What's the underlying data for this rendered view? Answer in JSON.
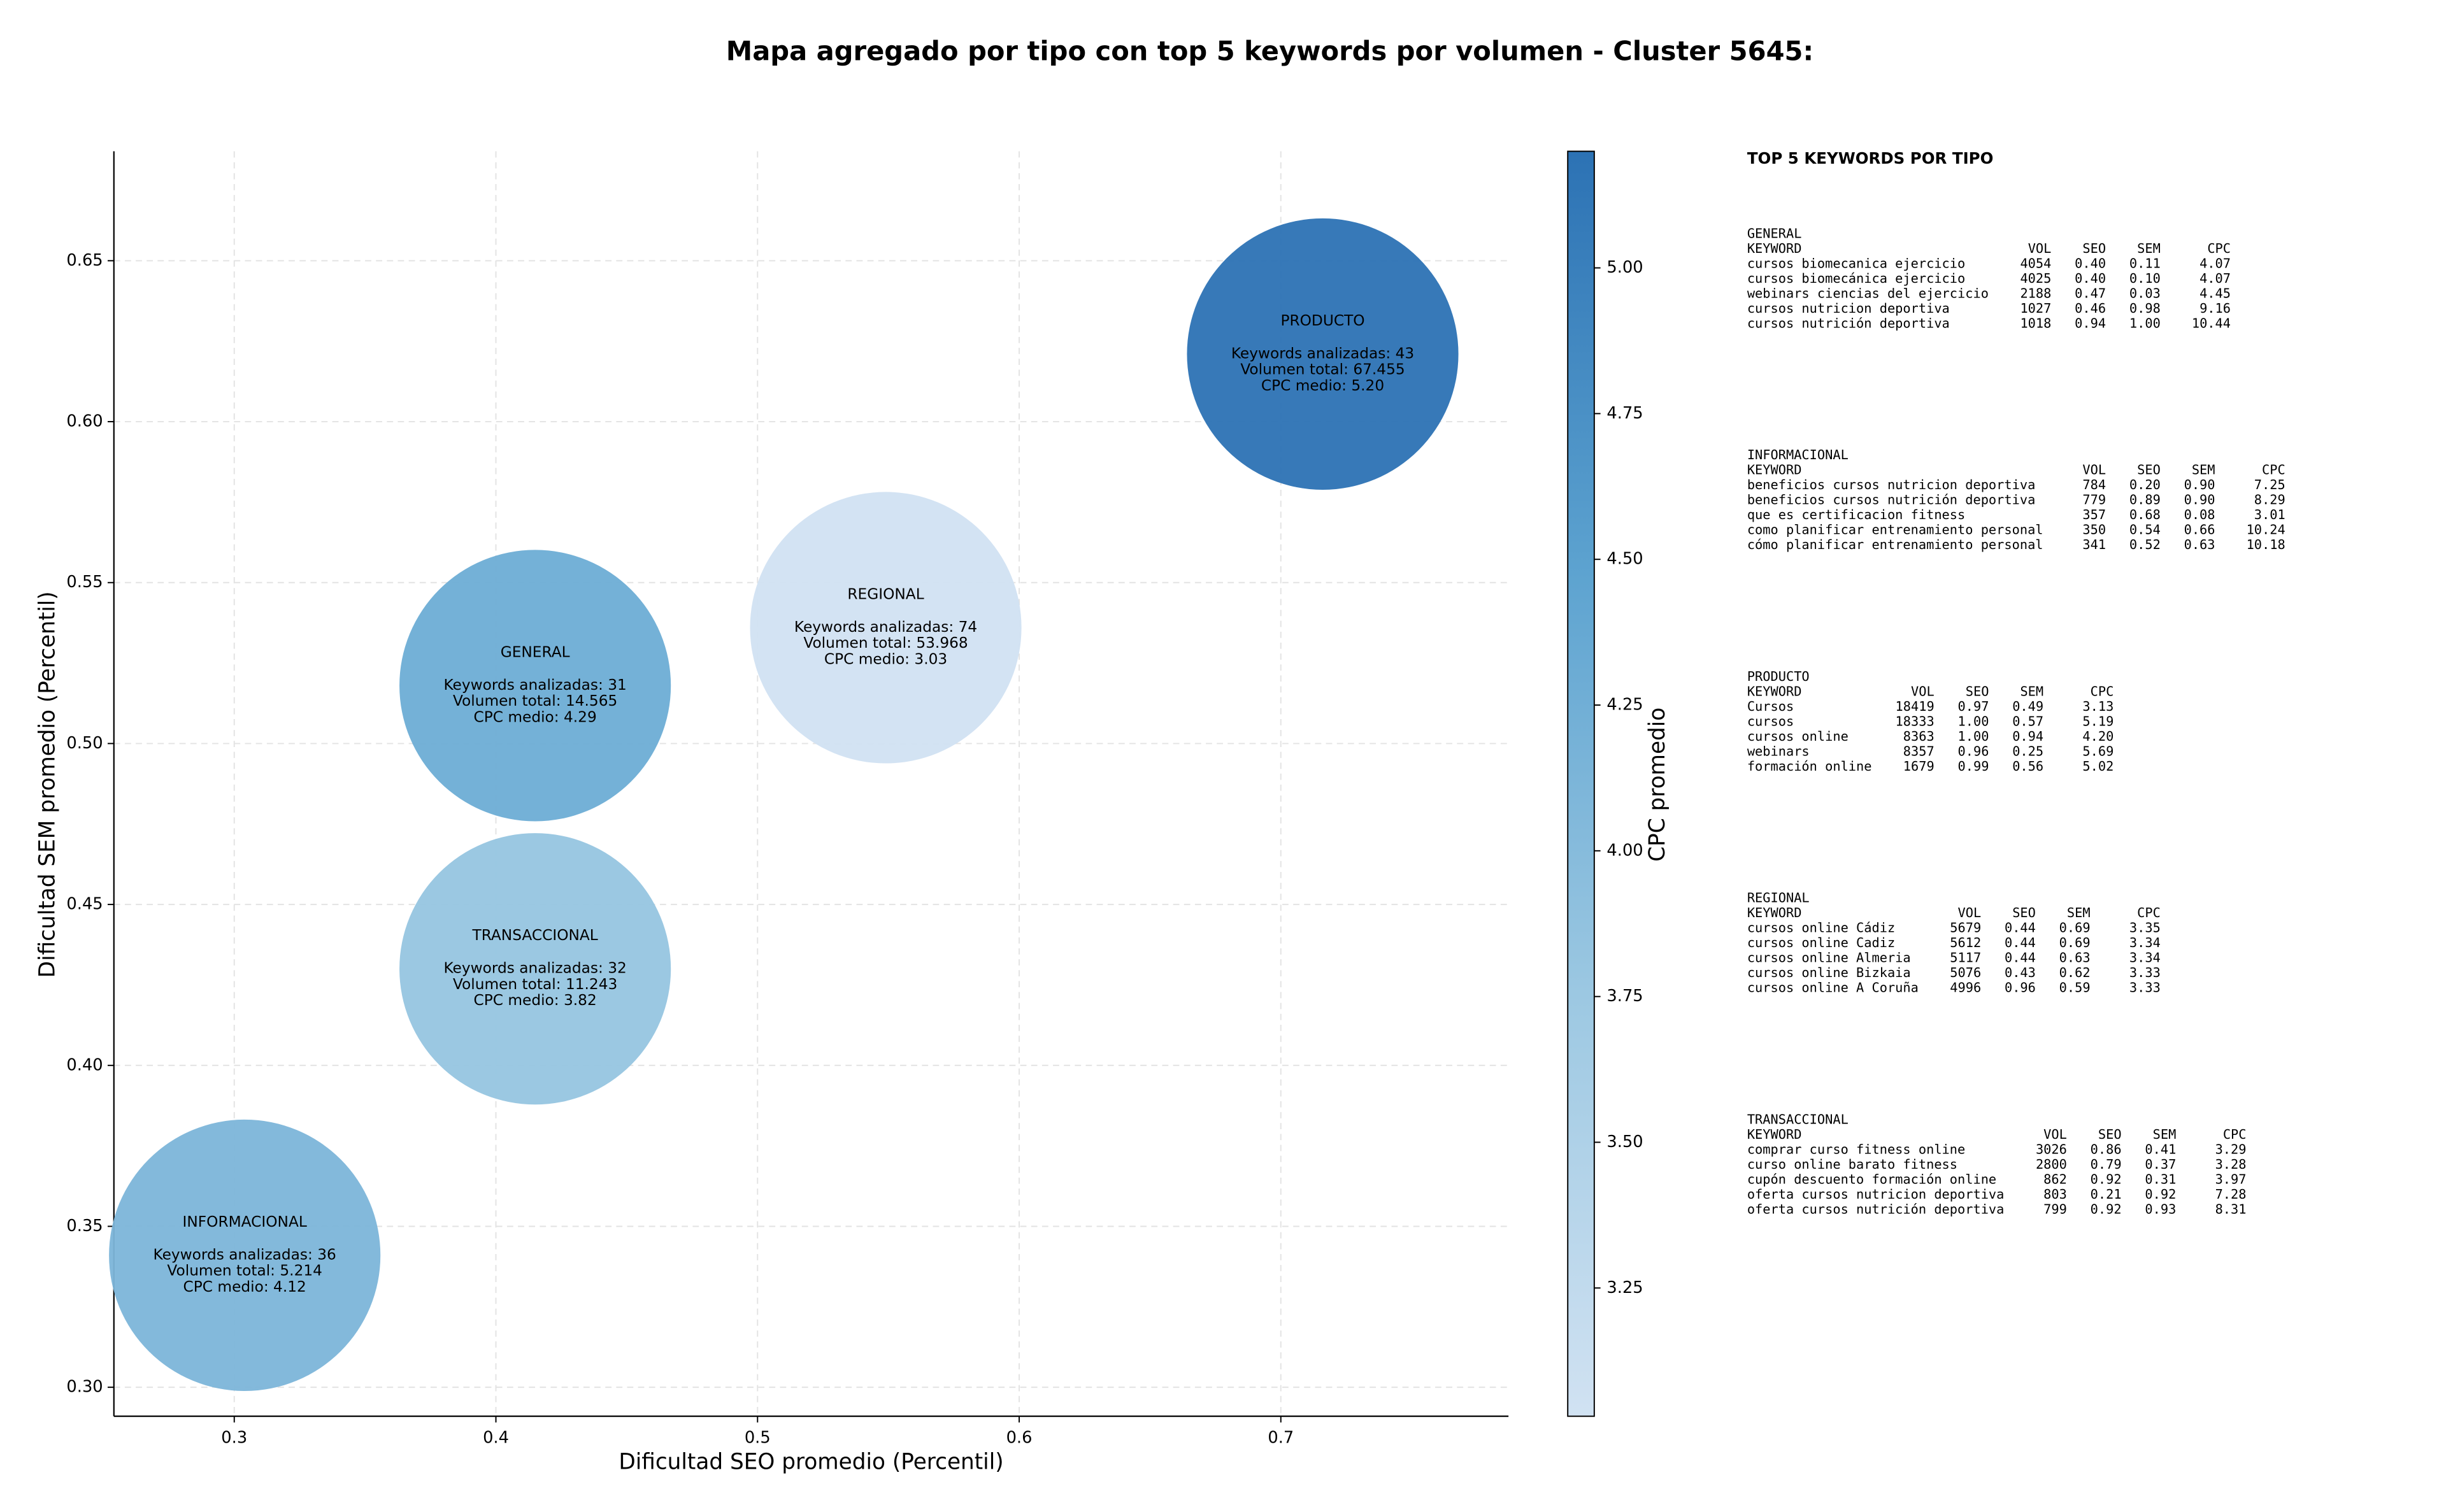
{
  "chart_data": {
    "type": "bubble",
    "title": "Mapa agregado por tipo con top 5 keywords por volumen - Cluster 5645:",
    "xlabel": "Dificultad SEO promedio (Percentil)",
    "ylabel": "Dificultad SEM promedio (Percentil)",
    "xlim": [
      0.254,
      0.787
    ],
    "ylim": [
      0.291,
      0.684
    ],
    "xticks": [
      0.3,
      0.4,
      0.5,
      0.6,
      0.7
    ],
    "yticks": [
      {
        "value": 0.3,
        "label": "0.30"
      },
      {
        "value": 0.35,
        "label": "0.35"
      },
      {
        "value": 0.4,
        "label": "0.40"
      },
      {
        "value": 0.45,
        "label": "0.45"
      },
      {
        "value": 0.5,
        "label": "0.50"
      },
      {
        "value": 0.55,
        "label": "0.55"
      },
      {
        "value": 0.6,
        "label": "0.60"
      },
      {
        "value": 0.65,
        "label": "0.65"
      }
    ],
    "grid": true,
    "points": [
      {
        "name": "GENERAL",
        "x": 0.415,
        "y": 0.518,
        "cpc": 4.29,
        "lines": [
          "Keywords analizadas: 31",
          "Volumen total: 14.565",
          "CPC medio: 4.29"
        ]
      },
      {
        "name": "INFORMACIONAL",
        "x": 0.304,
        "y": 0.341,
        "cpc": 4.12,
        "lines": [
          "Keywords analizadas: 36",
          "Volumen total: 5.214",
          "CPC medio: 4.12"
        ]
      },
      {
        "name": "PRODUCTO",
        "x": 0.716,
        "y": 0.621,
        "cpc": 5.2,
        "lines": [
          "Keywords analizadas: 43",
          "Volumen total: 67.455",
          "CPC medio: 5.20"
        ]
      },
      {
        "name": "REGIONAL",
        "x": 0.549,
        "y": 0.536,
        "cpc": 3.03,
        "lines": [
          "Keywords analizadas: 74",
          "Volumen total: 53.968",
          "CPC medio: 3.03"
        ]
      },
      {
        "name": "TRANSACCIONAL",
        "x": 0.415,
        "y": 0.43,
        "cpc": 3.82,
        "lines": [
          "Keywords analizadas: 32",
          "Volumen total: 11.243",
          "CPC medio: 3.82"
        ]
      }
    ],
    "colorbar": {
      "label": "CPC promedio",
      "lim": [
        3.03,
        5.2
      ],
      "ticks": [
        {
          "value": 3.25,
          "label": "3.25"
        },
        {
          "value": 3.5,
          "label": "3.50"
        },
        {
          "value": 3.75,
          "label": "3.75"
        },
        {
          "value": 4.0,
          "label": "4.00"
        },
        {
          "value": 4.25,
          "label": "4.25"
        },
        {
          "value": 4.5,
          "label": "4.50"
        },
        {
          "value": 4.75,
          "label": "4.75"
        },
        {
          "value": 5.0,
          "label": "5.00"
        }
      ],
      "colors": [
        "#d1e2f2",
        "#9cc8e2",
        "#5da3d0",
        "#2c72b4"
      ]
    }
  },
  "side_panel": {
    "title": "TOP 5 KEYWORDS POR TIPO",
    "groups": [
      {
        "name": "GENERAL",
        "columns": [
          "KEYWORD",
          "VOL",
          "SEO",
          "SEM",
          "CPC"
        ],
        "rows": [
          [
            "cursos biomecanica ejercicio",
            "4054",
            "0.40",
            "0.11",
            "4.07"
          ],
          [
            "cursos biomecánica ejercicio",
            "4025",
            "0.40",
            "0.10",
            "4.07"
          ],
          [
            "webinars ciencias del ejercicio",
            "2188",
            "0.47",
            "0.03",
            "4.45"
          ],
          [
            "cursos nutricion deportiva",
            "1027",
            "0.46",
            "0.98",
            "9.16"
          ],
          [
            "cursos nutrición deportiva",
            "1018",
            "0.94",
            "1.00",
            "10.44"
          ]
        ]
      },
      {
        "name": "INFORMACIONAL",
        "columns": [
          "KEYWORD",
          "VOL",
          "SEO",
          "SEM",
          "CPC"
        ],
        "rows": [
          [
            "beneficios cursos nutricion deportiva",
            "784",
            "0.20",
            "0.90",
            "7.25"
          ],
          [
            "beneficios cursos nutrición deportiva",
            "779",
            "0.89",
            "0.90",
            "8.29"
          ],
          [
            "que es certificacion fitness",
            "357",
            "0.68",
            "0.08",
            "3.01"
          ],
          [
            "como planificar entrenamiento personal",
            "350",
            "0.54",
            "0.66",
            "10.24"
          ],
          [
            "cómo planificar entrenamiento personal",
            "341",
            "0.52",
            "0.63",
            "10.18"
          ]
        ]
      },
      {
        "name": "PRODUCTO",
        "columns": [
          "KEYWORD",
          "VOL",
          "SEO",
          "SEM",
          "CPC"
        ],
        "rows": [
          [
            "Cursos",
            "18419",
            "0.97",
            "0.49",
            "3.13"
          ],
          [
            "cursos",
            "18333",
            "1.00",
            "0.57",
            "5.19"
          ],
          [
            "cursos online",
            "8363",
            "1.00",
            "0.94",
            "4.20"
          ],
          [
            "webinars",
            "8357",
            "0.96",
            "0.25",
            "5.69"
          ],
          [
            "formación online",
            "1679",
            "0.99",
            "0.56",
            "5.02"
          ]
        ]
      },
      {
        "name": "REGIONAL",
        "columns": [
          "KEYWORD",
          "VOL",
          "SEO",
          "SEM",
          "CPC"
        ],
        "rows": [
          [
            "cursos online Cádiz",
            "5679",
            "0.44",
            "0.69",
            "3.35"
          ],
          [
            "cursos online Cadiz",
            "5612",
            "0.44",
            "0.69",
            "3.34"
          ],
          [
            "cursos online Almeria",
            "5117",
            "0.44",
            "0.63",
            "3.34"
          ],
          [
            "cursos online Bizkaia",
            "5076",
            "0.43",
            "0.62",
            "3.33"
          ],
          [
            "cursos online A Coruña",
            "4996",
            "0.96",
            "0.59",
            "3.33"
          ]
        ]
      },
      {
        "name": "TRANSACCIONAL",
        "columns": [
          "KEYWORD",
          "VOL",
          "SEO",
          "SEM",
          "CPC"
        ],
        "rows": [
          [
            "comprar curso fitness online",
            "3026",
            "0.86",
            "0.41",
            "3.29"
          ],
          [
            "curso online barato fitness",
            "2800",
            "0.79",
            "0.37",
            "3.28"
          ],
          [
            "cupón descuento formación online",
            "862",
            "0.92",
            "0.31",
            "3.97"
          ],
          [
            "oferta cursos nutricion deportiva",
            "803",
            "0.21",
            "0.92",
            "7.28"
          ],
          [
            "oferta cursos nutrición deportiva",
            "799",
            "0.92",
            "0.93",
            "8.31"
          ]
        ]
      }
    ]
  }
}
